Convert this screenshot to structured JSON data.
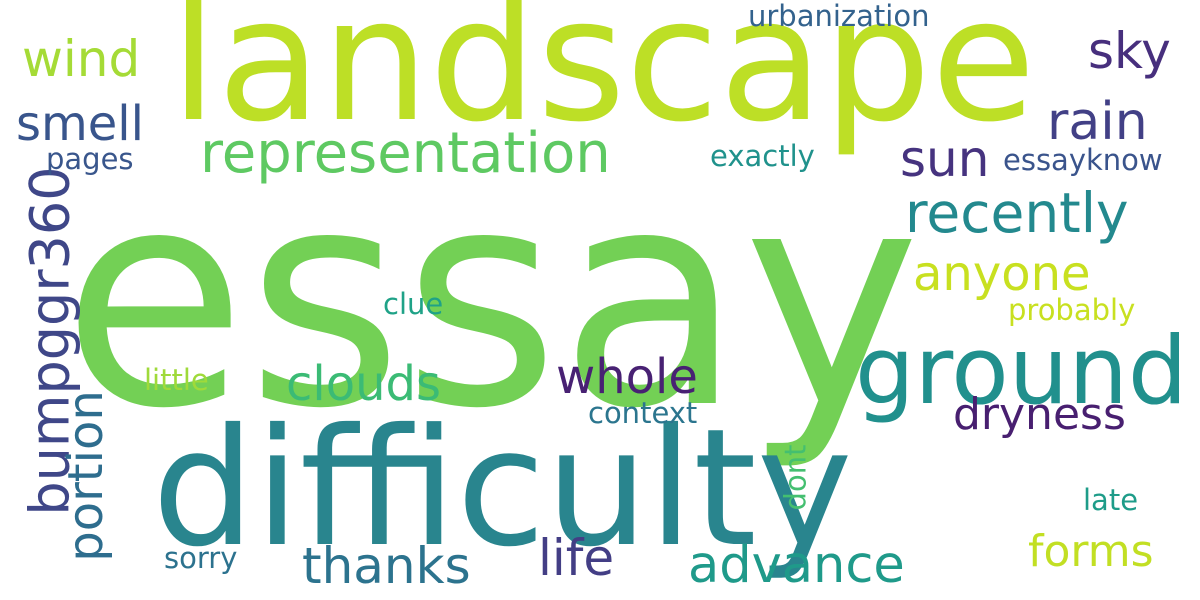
{
  "words": [
    {
      "text": "essay",
      "color": "#73d055"
    },
    {
      "text": "landscape",
      "color": "#bddf26"
    },
    {
      "text": "difficulty",
      "color": "#29858e"
    },
    {
      "text": "ground",
      "color": "#21908d"
    },
    {
      "text": "representation",
      "color": "#5ec962"
    },
    {
      "text": "bumpggr360",
      "color": "#3f4788"
    },
    {
      "text": "recently",
      "color": "#23898e"
    },
    {
      "text": "portion",
      "color": "#2e6d8e"
    },
    {
      "text": "advance",
      "color": "#1f9a8a"
    },
    {
      "text": "wind",
      "color": "#a5db36"
    },
    {
      "text": "smell",
      "color": "#39558c"
    },
    {
      "text": "sky",
      "color": "#472f7d"
    },
    {
      "text": "rain",
      "color": "#424086"
    },
    {
      "text": "sun",
      "color": "#46337f"
    },
    {
      "text": "anyone",
      "color": "#c8e020"
    },
    {
      "text": "clouds",
      "color": "#3bbb75"
    },
    {
      "text": "whole",
      "color": "#482173"
    },
    {
      "text": "dryness",
      "color": "#481f70"
    },
    {
      "text": "thanks",
      "color": "#2c738e"
    },
    {
      "text": "life",
      "color": "#433e85"
    },
    {
      "text": "forms",
      "color": "#c2df23"
    },
    {
      "text": "urbanization",
      "color": "#33628d"
    },
    {
      "text": "essayknow",
      "color": "#3a548c"
    },
    {
      "text": "exactly",
      "color": "#20928c"
    },
    {
      "text": "pages",
      "color": "#39568c"
    },
    {
      "text": "clue",
      "color": "#1fa287"
    },
    {
      "text": "probably",
      "color": "#c8e020"
    },
    {
      "text": "little",
      "color": "#9fda3a"
    },
    {
      "text": "context",
      "color": "#2b758e"
    },
    {
      "text": "dont",
      "color": "#44bf70"
    },
    {
      "text": "late",
      "color": "#1e9c89"
    },
    {
      "text": "sorry",
      "color": "#2c728e"
    }
  ]
}
